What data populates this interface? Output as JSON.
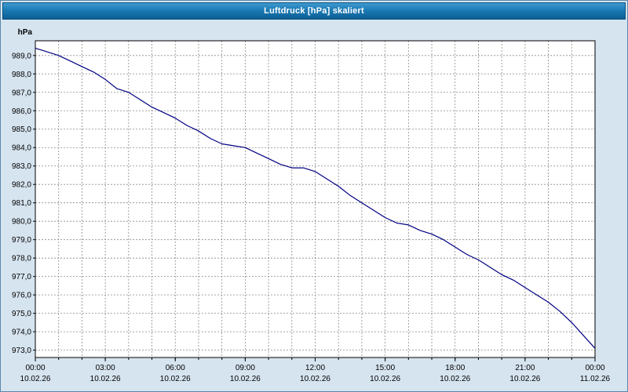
{
  "window": {
    "title": "Luftdruck [hPa] skaliert"
  },
  "chart": {
    "background": "#ffffff",
    "outer_background": "#d6e4f0",
    "grid_color": "#8a8a8a",
    "line_color": "#000084",
    "axis_color": "#000000",
    "title_bar_color": "#1b7ab4"
  },
  "chart_data": {
    "type": "line",
    "title": "Luftdruck [hPa] skaliert",
    "xlabel": "",
    "ylabel": "hPa",
    "ylim": [
      972.6,
      989.8
    ],
    "xlim_hours": [
      0,
      24
    ],
    "grid": true,
    "legend": false,
    "yticks": [
      989,
      988,
      987,
      986,
      985,
      984,
      983,
      982,
      981,
      980,
      979,
      978,
      977,
      976,
      975,
      974,
      973
    ],
    "ytick_labels": [
      "989,0",
      "988,0",
      "987,0",
      "986,0",
      "985,0",
      "984,0",
      "983,0",
      "982,0",
      "981,0",
      "980,0",
      "979,0",
      "978,0",
      "977,0",
      "976,0",
      "975,0",
      "974,0",
      "973,0"
    ],
    "xticks": [
      {
        "hour": 0,
        "time": "00:00",
        "date": "10.02.26"
      },
      {
        "hour": 3,
        "time": "03:00",
        "date": "10.02.26"
      },
      {
        "hour": 6,
        "time": "06:00",
        "date": "10.02.26"
      },
      {
        "hour": 9,
        "time": "09:00",
        "date": "10.02.26"
      },
      {
        "hour": 12,
        "time": "12:00",
        "date": "10.02.26"
      },
      {
        "hour": 15,
        "time": "15:00",
        "date": "10.02.26"
      },
      {
        "hour": 18,
        "time": "18:00",
        "date": "10.02.26"
      },
      {
        "hour": 21,
        "time": "21:00",
        "date": "10.02.26"
      },
      {
        "hour": 24,
        "time": "00:00",
        "date": "11.02.26"
      }
    ],
    "series": [
      {
        "name": "Luftdruck [hPa]",
        "x_hours": [
          0,
          0.5,
          1,
          1.5,
          2,
          2.5,
          3,
          3.5,
          4,
          4.5,
          5,
          5.5,
          6,
          6.5,
          7,
          7.5,
          8,
          8.5,
          9,
          9.5,
          10,
          10.5,
          11,
          11.5,
          12,
          12.5,
          13,
          13.5,
          14,
          14.5,
          15,
          15.5,
          16,
          16.5,
          17,
          17.5,
          18,
          18.5,
          19,
          19.5,
          20,
          20.5,
          21,
          21.5,
          22,
          22.5,
          23,
          23.5,
          24
        ],
        "values": [
          989.4,
          989.2,
          989.0,
          988.7,
          988.4,
          988.1,
          987.7,
          987.2,
          987.0,
          986.6,
          986.2,
          985.9,
          985.6,
          985.2,
          984.9,
          984.5,
          984.2,
          984.1,
          984.0,
          983.7,
          983.4,
          983.1,
          982.9,
          982.9,
          982.7,
          982.3,
          981.9,
          981.4,
          981.0,
          980.6,
          980.2,
          979.9,
          979.8,
          979.5,
          979.3,
          979.0,
          978.6,
          978.2,
          977.9,
          977.5,
          977.1,
          976.8,
          976.4,
          976.0,
          975.6,
          975.1,
          974.5,
          973.8,
          973.1
        ]
      }
    ]
  }
}
